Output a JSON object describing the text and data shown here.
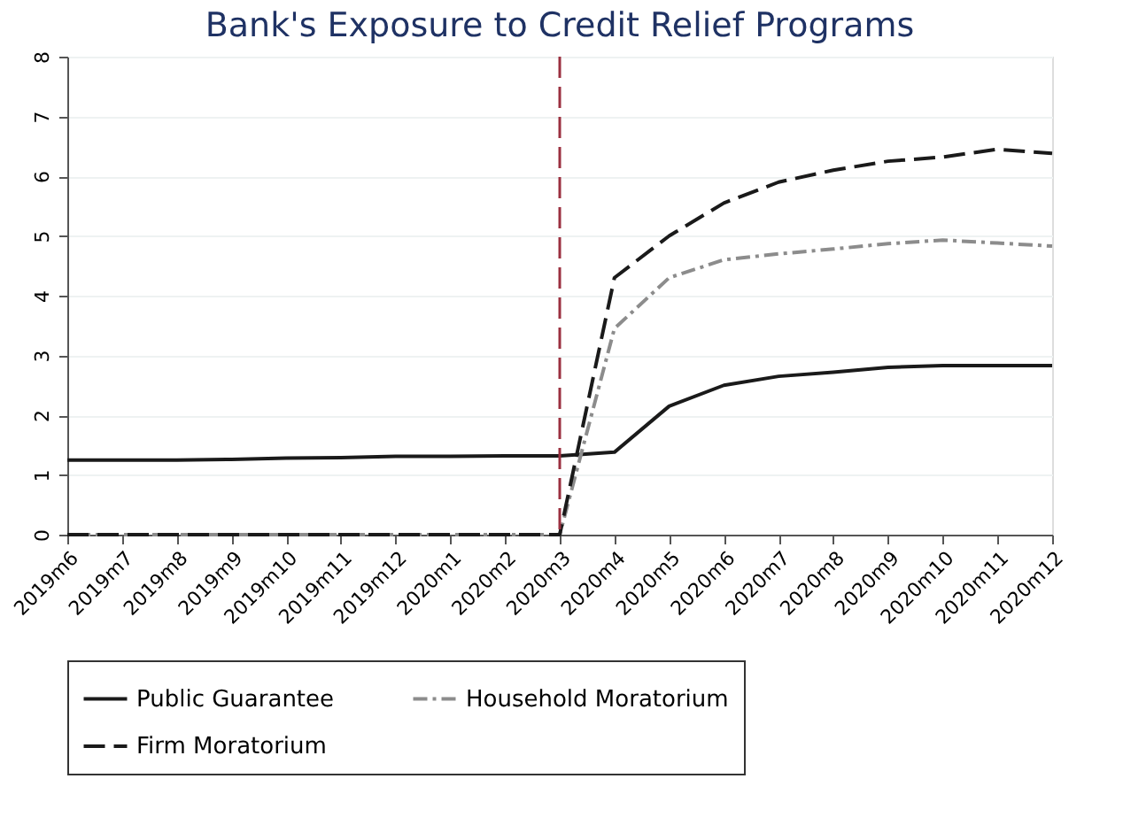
{
  "chart_data": {
    "type": "line",
    "title": "Bank's Exposure to Credit Relief Programs",
    "categories": [
      "2019m6",
      "2019m7",
      "2019m8",
      "2019m9",
      "2019m10",
      "2019m11",
      "2019m12",
      "2020m1",
      "2020m2",
      "2020m3",
      "2020m4",
      "2020m5",
      "2020m6",
      "2020m7",
      "2020m8",
      "2020m9",
      "2020m10",
      "2020m11",
      "2020m12"
    ],
    "series": [
      {
        "name": "Public Guarantee",
        "color": "#1a1a1a",
        "line_style": "solid",
        "values": [
          1.25,
          1.25,
          1.25,
          1.26,
          1.28,
          1.29,
          1.31,
          1.31,
          1.32,
          1.32,
          1.38,
          2.15,
          2.5,
          2.65,
          2.72,
          2.8,
          2.83,
          2.83,
          2.83
        ]
      },
      {
        "name": "Household Moratorium",
        "color": "#8c8c8c",
        "line_style": "dashdot",
        "values": [
          0,
          0,
          0,
          0,
          0,
          0,
          0,
          0,
          0,
          0,
          3.45,
          4.3,
          4.6,
          4.7,
          4.78,
          4.87,
          4.93,
          4.88,
          4.83
        ]
      },
      {
        "name": "Firm Moratorium",
        "color": "#1a1a1a",
        "line_style": "dashed",
        "values": [
          0,
          0,
          0,
          0,
          0,
          0,
          0,
          0,
          0,
          0,
          4.3,
          5.0,
          5.55,
          5.9,
          6.1,
          6.25,
          6.32,
          6.45,
          6.38
        ]
      }
    ],
    "ylim": [
      0,
      8
    ],
    "yticks": [
      0,
      1,
      2,
      3,
      4,
      5,
      6,
      7,
      8
    ],
    "grid": "y",
    "legend": "bottom",
    "ref_lines": [
      {
        "axis": "x",
        "value": "2020m3",
        "color": "#9b3040",
        "line_style": "dashed"
      }
    ]
  }
}
